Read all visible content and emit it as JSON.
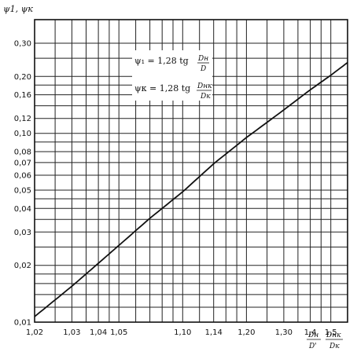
{
  "chart_data": {
    "type": "line",
    "scale_x": "log(x-1)",
    "scale_y": "log",
    "grid": true,
    "ylabel": "ψ1, ψк",
    "xlabel_parts": [
      {
        "num": "Dн",
        "den": "D'"
      },
      {
        "num": "Dнк",
        "den": "Dк"
      }
    ],
    "x_ticks": [
      {
        "value": 1.02,
        "label": "1,02"
      },
      {
        "value": 1.03,
        "label": "1,03"
      },
      {
        "value": 1.04,
        "label": "1,04"
      },
      {
        "value": 1.05,
        "label": "1,05"
      },
      {
        "value": 1.1,
        "label": "1,10"
      },
      {
        "value": 1.14,
        "label": "1,14"
      },
      {
        "value": 1.2,
        "label": "1,20"
      },
      {
        "value": 1.3,
        "label": "1,30"
      },
      {
        "value": 1.4,
        "label": "1,4"
      },
      {
        "value": 1.5,
        "label": "1,5"
      }
    ],
    "x_grid": [
      1.02,
      1.025,
      1.03,
      1.035,
      1.04,
      1.045,
      1.05,
      1.06,
      1.07,
      1.08,
      1.09,
      1.1,
      1.12,
      1.14,
      1.16,
      1.18,
      1.2,
      1.25,
      1.3,
      1.35,
      1.4,
      1.45,
      1.5,
      1.6
    ],
    "y_ticks": [
      {
        "value": 0.01,
        "label": "0,01"
      },
      {
        "value": 0.02,
        "label": "0,02"
      },
      {
        "value": 0.03,
        "label": "0,03"
      },
      {
        "value": 0.04,
        "label": "0,04"
      },
      {
        "value": 0.05,
        "label": "0,05"
      },
      {
        "value": 0.06,
        "label": "0,06"
      },
      {
        "value": 0.07,
        "label": "0,07"
      },
      {
        "value": 0.08,
        "label": "0,08"
      },
      {
        "value": 0.1,
        "label": "0,10"
      },
      {
        "value": 0.12,
        "label": "0,12"
      },
      {
        "value": 0.16,
        "label": "0,16"
      },
      {
        "value": 0.2,
        "label": "0,20"
      },
      {
        "value": 0.3,
        "label": "0,30"
      }
    ],
    "y_grid": [
      0.01,
      0.012,
      0.014,
      0.016,
      0.018,
      0.02,
      0.025,
      0.03,
      0.035,
      0.04,
      0.045,
      0.05,
      0.06,
      0.07,
      0.08,
      0.09,
      0.1,
      0.12,
      0.14,
      0.16,
      0.18,
      0.2,
      0.25,
      0.3,
      0.4
    ],
    "series": [
      {
        "points": [
          [
            1.02,
            0.0107
          ],
          [
            1.03,
            0.0155
          ],
          [
            1.04,
            0.0205
          ],
          [
            1.05,
            0.0255
          ],
          [
            1.07,
            0.0355
          ],
          [
            1.1,
            0.049
          ],
          [
            1.14,
            0.069
          ],
          [
            1.2,
            0.095
          ],
          [
            1.3,
            0.133
          ],
          [
            1.4,
            0.17
          ],
          [
            1.5,
            0.203
          ],
          [
            1.6,
            0.237
          ]
        ]
      }
    ],
    "formula": {
      "line1_lhs": "ψ₁ = 1,28 tg",
      "line1_num": "Dн",
      "line1_den": "D",
      "line2_lhs": "ψк = 1,28 tg",
      "line2_num": "Dнк",
      "line2_den": "Dк"
    }
  }
}
